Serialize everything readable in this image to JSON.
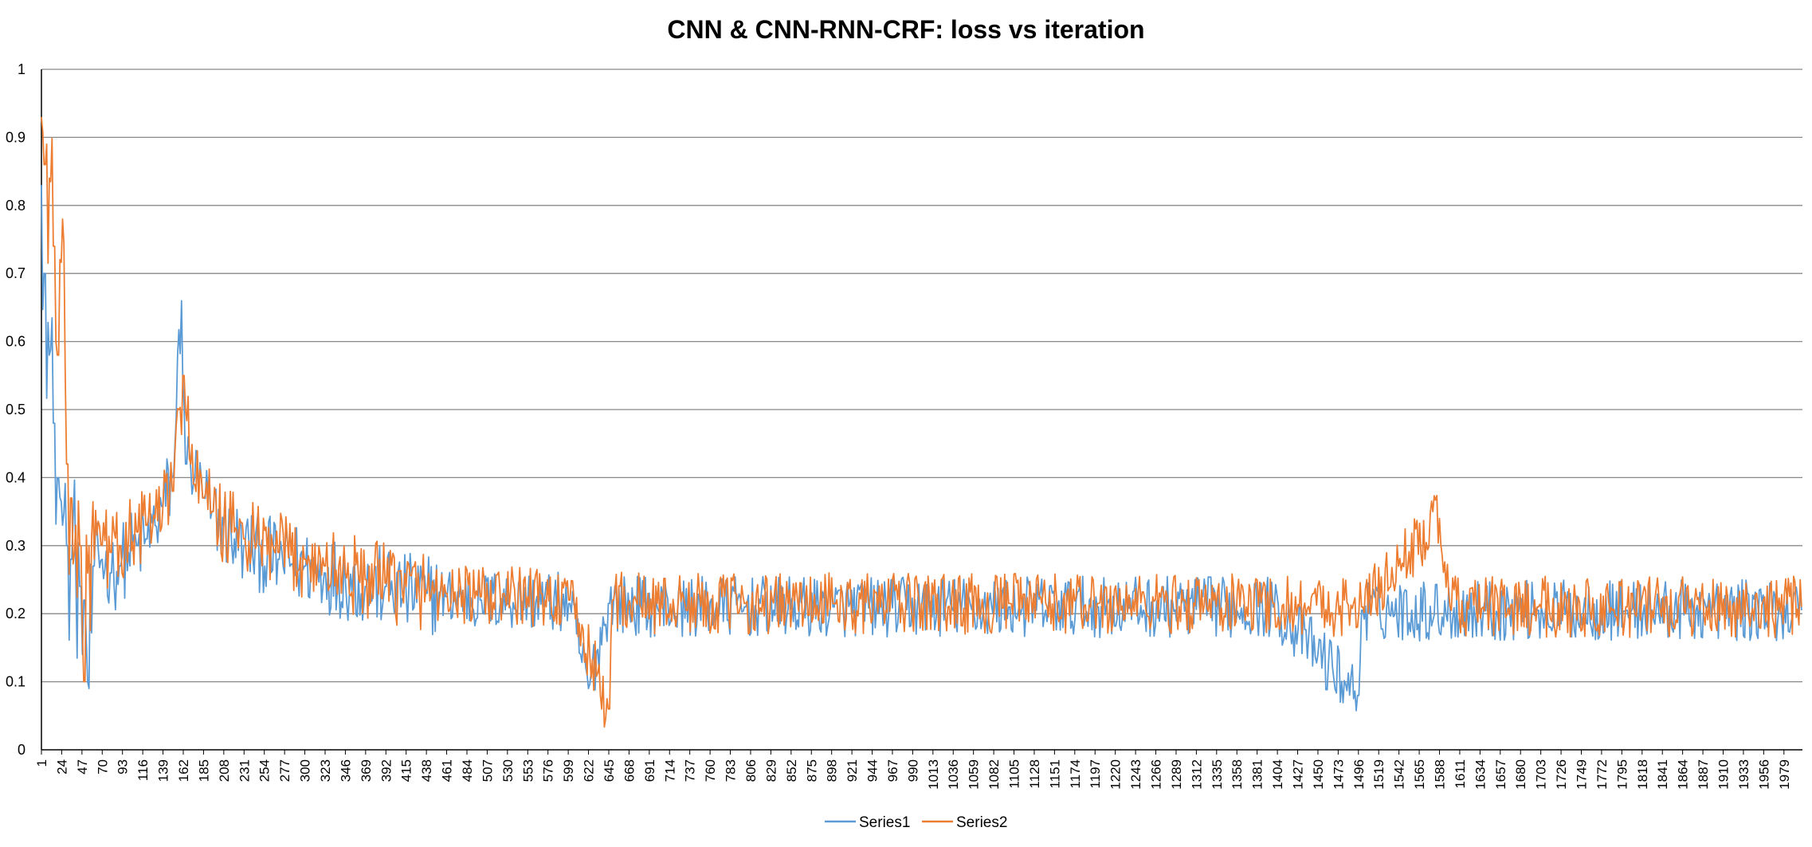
{
  "chart_data": {
    "type": "line",
    "title": "CNN & CNN-RNN-CRF: loss vs iteration",
    "xlabel": "",
    "ylabel": "",
    "x_range": [
      1,
      2000
    ],
    "x_tick_labels": [
      "1",
      "24",
      "47",
      "70",
      "93",
      "116",
      "139",
      "162",
      "185",
      "208",
      "231",
      "254",
      "277",
      "300",
      "323",
      "346",
      "369",
      "392",
      "415",
      "438",
      "461",
      "484",
      "507",
      "530",
      "553",
      "576",
      "599",
      "622",
      "645",
      "668",
      "691",
      "714",
      "737",
      "760",
      "783",
      "806",
      "829",
      "852",
      "875",
      "898",
      "921",
      "944",
      "967",
      "990",
      "1013",
      "1036",
      "1059",
      "1082",
      "1105",
      "1128",
      "1151",
      "1174",
      "1197",
      "1220",
      "1243",
      "1266",
      "1289",
      "1312",
      "1335",
      "1358",
      "1381",
      "1404",
      "1427",
      "1450",
      "1473",
      "1496",
      "1519",
      "1542",
      "1565",
      "1588",
      "1611",
      "1634",
      "1657",
      "1680",
      "1703",
      "1726",
      "1749",
      "1772",
      "1795",
      "1818",
      "1841",
      "1864",
      "1887",
      "1910",
      "1933",
      "1956",
      "1979"
    ],
    "y_tick_labels": [
      "0",
      "0.1",
      "0.2",
      "0.3",
      "0.4",
      "0.5",
      "0.6",
      "0.7",
      "0.8",
      "0.9",
      "1"
    ],
    "ylim": [
      0,
      1
    ],
    "grid": "horizontal",
    "legend_position": "bottom",
    "series": [
      {
        "name": "Series1",
        "color": "#5b9bd5",
        "values": [
          [
            1,
            0.83
          ],
          [
            5,
            0.7
          ],
          [
            10,
            0.58
          ],
          [
            15,
            0.48
          ],
          [
            20,
            0.4
          ],
          [
            25,
            0.33
          ],
          [
            30,
            0.3
          ],
          [
            35,
            0.28
          ],
          [
            40,
            0.26
          ],
          [
            45,
            0.24
          ],
          [
            47,
            0.14
          ],
          [
            50,
            0.22
          ],
          [
            55,
            0.09
          ],
          [
            60,
            0.27
          ],
          [
            70,
            0.28
          ],
          [
            80,
            0.26
          ],
          [
            90,
            0.27
          ],
          [
            100,
            0.29
          ],
          [
            110,
            0.3
          ],
          [
            120,
            0.31
          ],
          [
            130,
            0.33
          ],
          [
            139,
            0.36
          ],
          [
            150,
            0.4
          ],
          [
            160,
            0.66
          ],
          [
            165,
            0.42
          ],
          [
            175,
            0.4
          ],
          [
            185,
            0.37
          ],
          [
            195,
            0.35
          ],
          [
            208,
            0.33
          ],
          [
            220,
            0.31
          ],
          [
            231,
            0.3
          ],
          [
            250,
            0.29
          ],
          [
            270,
            0.28
          ],
          [
            300,
            0.27
          ],
          [
            323,
            0.26
          ],
          [
            346,
            0.25
          ],
          [
            369,
            0.24
          ],
          [
            392,
            0.24
          ],
          [
            415,
            0.23
          ],
          [
            438,
            0.23
          ],
          [
            461,
            0.225
          ],
          [
            500,
            0.22
          ],
          [
            553,
            0.22
          ],
          [
            600,
            0.215
          ],
          [
            622,
            0.09
          ],
          [
            645,
            0.215
          ],
          [
            700,
            0.21
          ],
          [
            800,
            0.21
          ],
          [
            900,
            0.21
          ],
          [
            1000,
            0.21
          ],
          [
            1100,
            0.21
          ],
          [
            1200,
            0.21
          ],
          [
            1300,
            0.21
          ],
          [
            1400,
            0.21
          ],
          [
            1496,
            0.08
          ],
          [
            1500,
            0.205
          ],
          [
            1600,
            0.205
          ],
          [
            1700,
            0.205
          ],
          [
            1800,
            0.205
          ],
          [
            1900,
            0.205
          ],
          [
            2000,
            0.205
          ]
        ]
      },
      {
        "name": "Series2",
        "color": "#ed7d31",
        "values": [
          [
            1,
            0.93
          ],
          [
            5,
            0.86
          ],
          [
            10,
            0.84
          ],
          [
            15,
            0.74
          ],
          [
            20,
            0.58
          ],
          [
            25,
            0.78
          ],
          [
            30,
            0.42
          ],
          [
            35,
            0.37
          ],
          [
            40,
            0.33
          ],
          [
            45,
            0.3
          ],
          [
            50,
            0.1
          ],
          [
            55,
            0.3
          ],
          [
            70,
            0.3
          ],
          [
            80,
            0.29
          ],
          [
            90,
            0.3
          ],
          [
            100,
            0.31
          ],
          [
            110,
            0.32
          ],
          [
            120,
            0.33
          ],
          [
            130,
            0.34
          ],
          [
            139,
            0.36
          ],
          [
            150,
            0.38
          ],
          [
            162,
            0.55
          ],
          [
            175,
            0.39
          ],
          [
            185,
            0.37
          ],
          [
            195,
            0.35
          ],
          [
            208,
            0.33
          ],
          [
            220,
            0.32
          ],
          [
            231,
            0.31
          ],
          [
            250,
            0.3
          ],
          [
            270,
            0.29
          ],
          [
            300,
            0.28
          ],
          [
            323,
            0.27
          ],
          [
            346,
            0.26
          ],
          [
            369,
            0.25
          ],
          [
            392,
            0.245
          ],
          [
            415,
            0.24
          ],
          [
            438,
            0.235
          ],
          [
            461,
            0.23
          ],
          [
            500,
            0.225
          ],
          [
            553,
            0.225
          ],
          [
            600,
            0.22
          ],
          [
            645,
            0.06
          ],
          [
            650,
            0.22
          ],
          [
            700,
            0.215
          ],
          [
            800,
            0.215
          ],
          [
            900,
            0.215
          ],
          [
            1000,
            0.215
          ],
          [
            1100,
            0.215
          ],
          [
            1200,
            0.215
          ],
          [
            1300,
            0.215
          ],
          [
            1400,
            0.215
          ],
          [
            1500,
            0.21
          ],
          [
            1588,
            0.34
          ],
          [
            1600,
            0.21
          ],
          [
            1700,
            0.21
          ],
          [
            1800,
            0.21
          ],
          [
            1900,
            0.21
          ],
          [
            2000,
            0.21
          ]
        ]
      }
    ]
  }
}
